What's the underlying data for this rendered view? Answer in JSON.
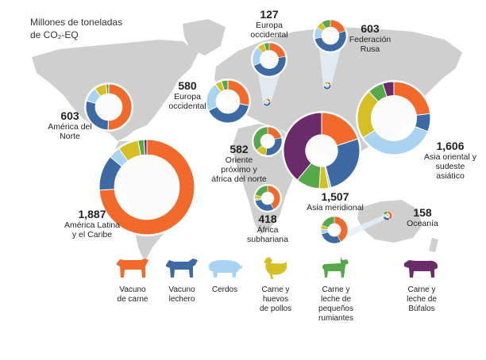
{
  "chart_data": {
    "type": "pie",
    "title": [
      "Millones de toneladas",
      "de CO₂-EQ"
    ],
    "category_colors": {
      "beef": "#f26a2b",
      "dairy": "#3d6aa3",
      "pork": "#a8d4f2",
      "chicken": "#d4bf24",
      "small_ruminants": "#57a84a",
      "buffalo": "#6b2b6b"
    },
    "categories": [
      {
        "key": "beef",
        "label": "Vacuno\nde carne"
      },
      {
        "key": "dairy",
        "label": "Vacuno\nlechero"
      },
      {
        "key": "pork",
        "label": "Cerdos"
      },
      {
        "key": "chicken",
        "label": "Carne y\nhuevos\nde pollos"
      },
      {
        "key": "small_ruminants",
        "label": "Carne y\nleche de\npequeños\nrumiantes"
      },
      {
        "key": "buffalo",
        "label": "Carne  y\nleche de\nBúfalos"
      }
    ],
    "regions": [
      {
        "id": "north-america",
        "name": "América del\nNorte",
        "total": "603",
        "values": {
          "beef": 0.49,
          "dairy": 0.28,
          "pork": 0.1,
          "chicken": 0.08,
          "small_ruminants": 0.02,
          "buffalo": 0.0
        }
      },
      {
        "id": "latin-america",
        "name": "América Latina\ny el Caribe",
        "total": "1,887",
        "values": {
          "beef": 0.74,
          "dairy": 0.12,
          "pork": 0.04,
          "chicken": 0.07,
          "small_ruminants": 0.02,
          "buffalo": 0.01
        }
      },
      {
        "id": "western-europe",
        "name": "Europa\noccidental",
        "total": "580",
        "values": {
          "beef": 0.28,
          "dairy": 0.4,
          "pork": 0.22,
          "chicken": 0.05,
          "small_ruminants": 0.05,
          "buffalo": 0.0
        }
      },
      {
        "id": "eastern-europe",
        "name": "Europa\noccidental",
        "total": "127",
        "values": {
          "beef": 0.22,
          "dairy": 0.47,
          "pork": 0.19,
          "chicken": 0.07,
          "small_ruminants": 0.05,
          "buffalo": 0.0
        }
      },
      {
        "id": "russia",
        "name": "Federación\nRusa",
        "total": "603",
        "values": {
          "beef": 0.2,
          "dairy": 0.52,
          "pork": 0.12,
          "chicken": 0.07,
          "small_ruminants": 0.09,
          "buffalo": 0.0
        }
      },
      {
        "id": "near-east",
        "name": "Oriente\npróximo y\náfrica del norte",
        "total": "582",
        "values": {
          "beef": 0.21,
          "dairy": 0.31,
          "pork": 0.0,
          "chicken": 0.12,
          "small_ruminants": 0.36,
          "buffalo": 0.0
        }
      },
      {
        "id": "sub-saharan",
        "name": "África\nsubhariana",
        "total": "418",
        "values": {
          "beef": 0.42,
          "dairy": 0.3,
          "pork": 0.02,
          "chicken": 0.05,
          "small_ruminants": 0.21,
          "buffalo": 0.0
        }
      },
      {
        "id": "south-asia",
        "name": "Asia meridional",
        "total": "1,507",
        "values": {
          "beef": 0.2,
          "dairy": 0.26,
          "pork": 0.01,
          "chicken": 0.04,
          "small_ruminants": 0.1,
          "buffalo": 0.39
        }
      },
      {
        "id": "east-asia",
        "name": "Asia oriental y\nsudeste\nasiático",
        "total": "1,606",
        "values": {
          "beef": 0.23,
          "dairy": 0.08,
          "pork": 0.35,
          "chicken": 0.22,
          "small_ruminants": 0.07,
          "buffalo": 0.05
        }
      },
      {
        "id": "oceania",
        "name": "Oceanía",
        "total": "158",
        "values": {
          "beef": 0.42,
          "dairy": 0.28,
          "pork": 0.06,
          "chicken": 0.05,
          "small_ruminants": 0.19,
          "buffalo": 0.0
        }
      }
    ]
  }
}
